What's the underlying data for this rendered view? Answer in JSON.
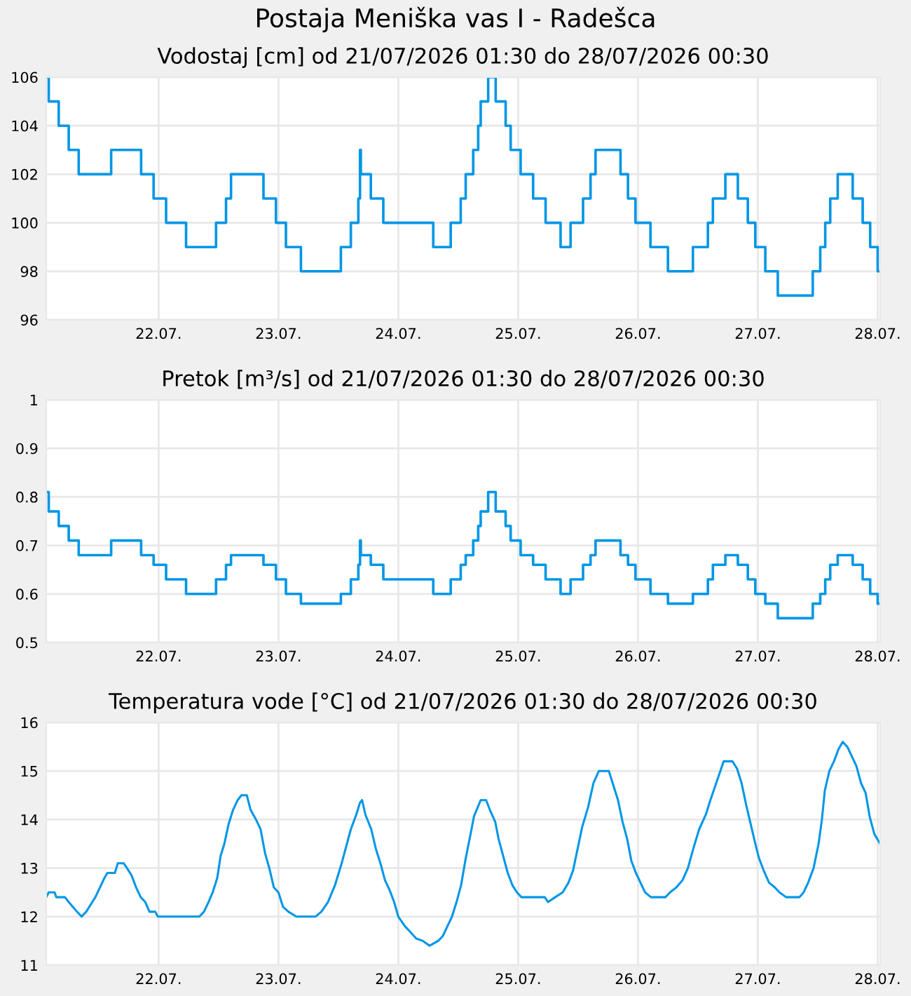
{
  "chart_data": [
    {
      "type": "step",
      "title": "Postaja Meniška vas I - Radešca",
      "subtitle": "Vodostaj [cm] od 21/07/2026 01:30 do 28/07/2026 00:30",
      "x": [
        "2026-07-21T01:30",
        "2026-07-21T02:00",
        "2026-07-21T04:00",
        "2026-07-21T06:00",
        "2026-07-21T08:00",
        "2026-07-21T14:30",
        "2026-07-21T20:30",
        "2026-07-21T23:00",
        "2026-07-22T01:30",
        "2026-07-22T05:30",
        "2026-07-22T11:30",
        "2026-07-22T13:30",
        "2026-07-22T14:30",
        "2026-07-22T21:00",
        "2026-07-22T23:30",
        "2026-07-23T01:30",
        "2026-07-23T04:30",
        "2026-07-23T12:30",
        "2026-07-23T14:30",
        "2026-07-23T16:00",
        "2026-07-23T16:20",
        "2026-07-23T16:30",
        "2026-07-23T18:30",
        "2026-07-23T21:00",
        "2026-07-24T07:00",
        "2026-07-24T10:30",
        "2026-07-24T12:30",
        "2026-07-24T13:30",
        "2026-07-24T15:00",
        "2026-07-24T16:00",
        "2026-07-24T16:30",
        "2026-07-24T18:00",
        "2026-07-24T19:30",
        "2026-07-24T21:30",
        "2026-07-24T22:30",
        "2026-07-25T00:30",
        "2026-07-25T03:00",
        "2026-07-25T05:30",
        "2026-07-25T08:30",
        "2026-07-25T10:30",
        "2026-07-25T13:00",
        "2026-07-25T14:30",
        "2026-07-25T15:30",
        "2026-07-25T20:30",
        "2026-07-25T22:00",
        "2026-07-25T23:30",
        "2026-07-26T02:30",
        "2026-07-26T06:00",
        "2026-07-26T11:00",
        "2026-07-26T14:00",
        "2026-07-26T15:00",
        "2026-07-26T17:30",
        "2026-07-26T20:00",
        "2026-07-26T22:00",
        "2026-07-26T23:30",
        "2026-07-27T01:30",
        "2026-07-27T04:00",
        "2026-07-27T11:00",
        "2026-07-27T12:30",
        "2026-07-27T13:30",
        "2026-07-27T14:30",
        "2026-07-27T16:00",
        "2026-07-27T19:00",
        "2026-07-27T21:00",
        "2026-07-27T22:30",
        "2026-07-28T00:00",
        "2026-07-28T00:30"
      ],
      "series": [
        {
          "color": "#0096e6",
          "values": [
            106,
            105,
            104,
            103,
            102,
            103,
            102,
            101,
            100,
            99,
            100,
            101,
            102,
            101,
            100,
            99,
            98,
            99,
            100,
            101,
            103,
            102,
            101,
            100,
            99,
            100,
            101,
            102,
            103,
            104,
            105,
            106,
            105,
            104,
            103,
            102,
            101,
            100,
            99,
            100,
            101,
            102,
            103,
            102,
            101,
            100,
            99,
            98,
            99,
            100,
            101,
            102,
            101,
            100,
            99,
            98,
            97,
            98,
            99,
            100,
            101,
            102,
            101,
            100,
            99,
            98,
            98
          ]
        }
      ],
      "xlim": [
        "2026-07-21T01:30",
        "2026-07-28T00:30"
      ],
      "xticks": [
        {
          "value": "2026-07-22",
          "label": "22.07."
        },
        {
          "value": "2026-07-23",
          "label": "23.07."
        },
        {
          "value": "2026-07-24",
          "label": "24.07."
        },
        {
          "value": "2026-07-25",
          "label": "25.07."
        },
        {
          "value": "2026-07-26",
          "label": "26.07."
        },
        {
          "value": "2026-07-27",
          "label": "27.07."
        },
        {
          "value": "2026-07-28",
          "label": "28.07."
        }
      ],
      "ylim": [
        96,
        106
      ],
      "yticks": [
        96,
        98,
        100,
        102,
        104,
        106
      ],
      "grid": true
    },
    {
      "type": "step",
      "title": "Pretok [m³/s] od 21/07/2026 01:30 do 28/07/2026 00:30",
      "x": [
        "2026-07-21T01:30",
        "2026-07-21T02:00",
        "2026-07-21T04:00",
        "2026-07-21T06:00",
        "2026-07-21T08:00",
        "2026-07-21T14:30",
        "2026-07-21T20:30",
        "2026-07-21T23:00",
        "2026-07-22T01:30",
        "2026-07-22T05:30",
        "2026-07-22T11:30",
        "2026-07-22T13:30",
        "2026-07-22T14:30",
        "2026-07-22T21:00",
        "2026-07-22T23:30",
        "2026-07-23T01:30",
        "2026-07-23T04:30",
        "2026-07-23T12:30",
        "2026-07-23T14:30",
        "2026-07-23T16:00",
        "2026-07-23T16:20",
        "2026-07-23T16:30",
        "2026-07-23T18:30",
        "2026-07-23T21:00",
        "2026-07-24T07:00",
        "2026-07-24T10:30",
        "2026-07-24T12:30",
        "2026-07-24T13:30",
        "2026-07-24T15:00",
        "2026-07-24T16:00",
        "2026-07-24T16:30",
        "2026-07-24T18:00",
        "2026-07-24T19:30",
        "2026-07-24T21:30",
        "2026-07-24T22:30",
        "2026-07-25T00:30",
        "2026-07-25T03:00",
        "2026-07-25T05:30",
        "2026-07-25T08:30",
        "2026-07-25T10:30",
        "2026-07-25T13:00",
        "2026-07-25T14:30",
        "2026-07-25T15:30",
        "2026-07-25T20:30",
        "2026-07-25T22:00",
        "2026-07-25T23:30",
        "2026-07-26T02:30",
        "2026-07-26T06:00",
        "2026-07-26T11:00",
        "2026-07-26T14:00",
        "2026-07-26T15:00",
        "2026-07-26T17:30",
        "2026-07-26T20:00",
        "2026-07-26T22:00",
        "2026-07-26T23:30",
        "2026-07-27T01:30",
        "2026-07-27T04:00",
        "2026-07-27T11:00",
        "2026-07-27T12:30",
        "2026-07-27T13:30",
        "2026-07-27T14:30",
        "2026-07-27T16:00",
        "2026-07-27T19:00",
        "2026-07-27T21:00",
        "2026-07-27T22:30",
        "2026-07-28T00:00",
        "2026-07-28T00:30"
      ],
      "series": [
        {
          "color": "#0096e6",
          "values": [
            0.81,
            0.77,
            0.74,
            0.71,
            0.68,
            0.71,
            0.68,
            0.66,
            0.63,
            0.6,
            0.63,
            0.66,
            0.68,
            0.66,
            0.63,
            0.6,
            0.58,
            0.6,
            0.63,
            0.66,
            0.71,
            0.68,
            0.66,
            0.63,
            0.6,
            0.63,
            0.66,
            0.68,
            0.71,
            0.74,
            0.77,
            0.81,
            0.77,
            0.74,
            0.71,
            0.68,
            0.66,
            0.63,
            0.6,
            0.63,
            0.66,
            0.68,
            0.71,
            0.68,
            0.66,
            0.63,
            0.6,
            0.58,
            0.6,
            0.63,
            0.66,
            0.68,
            0.66,
            0.63,
            0.6,
            0.58,
            0.55,
            0.58,
            0.6,
            0.63,
            0.66,
            0.68,
            0.66,
            0.63,
            0.6,
            0.58,
            0.58
          ]
        }
      ],
      "xlim": [
        "2026-07-21T01:30",
        "2026-07-28T00:30"
      ],
      "xticks": [
        {
          "value": "2026-07-22",
          "label": "22.07."
        },
        {
          "value": "2026-07-23",
          "label": "23.07."
        },
        {
          "value": "2026-07-24",
          "label": "24.07."
        },
        {
          "value": "2026-07-25",
          "label": "25.07."
        },
        {
          "value": "2026-07-26",
          "label": "26.07."
        },
        {
          "value": "2026-07-27",
          "label": "27.07."
        },
        {
          "value": "2026-07-28",
          "label": "28.07."
        }
      ],
      "ylim": [
        0.5,
        1
      ],
      "yticks": [
        0.5,
        0.6,
        0.7,
        0.8,
        0.9,
        1
      ],
      "grid": true
    },
    {
      "type": "line",
      "title": "Temperatura vode [°C] od 21/07/2026 01:30 do 28/07/2026 00:30",
      "x": [
        "2026-07-21T01:30",
        "2026-07-21T02:00",
        "2026-07-21T03:10",
        "2026-07-21T03:30",
        "2026-07-21T05:15",
        "2026-07-21T06:00",
        "2026-07-21T06:50",
        "2026-07-21T07:40",
        "2026-07-21T08:35",
        "2026-07-21T09:30",
        "2026-07-21T10:25",
        "2026-07-21T11:20",
        "2026-07-21T12:15",
        "2026-07-21T13:10",
        "2026-07-21T13:45",
        "2026-07-21T15:15",
        "2026-07-21T15:50",
        "2026-07-21T17:00",
        "2026-07-21T17:40",
        "2026-07-21T18:35",
        "2026-07-21T19:30",
        "2026-07-21T20:25",
        "2026-07-21T21:20",
        "2026-07-21T22:10",
        "2026-07-21T23:20",
        "2026-07-21T23:50",
        "2026-07-22T08:10",
        "2026-07-22T09:05",
        "2026-07-22T10:00",
        "2026-07-22T10:50",
        "2026-07-22T11:45",
        "2026-07-22T12:25",
        "2026-07-22T13:10",
        "2026-07-22T14:00",
        "2026-07-22T14:55",
        "2026-07-22T15:50",
        "2026-07-22T16:35",
        "2026-07-22T17:40",
        "2026-07-22T18:25",
        "2026-07-22T19:30",
        "2026-07-22T20:25",
        "2026-07-22T21:20",
        "2026-07-22T22:10",
        "2026-07-22T23:05",
        "2026-07-23T00:00",
        "2026-07-23T00:55",
        "2026-07-23T02:00",
        "2026-07-23T03:35",
        "2026-07-23T07:25",
        "2026-07-23T08:35",
        "2026-07-23T09:55",
        "2026-07-23T11:20",
        "2026-07-23T12:40",
        "2026-07-23T13:35",
        "2026-07-23T14:30",
        "2026-07-23T15:35",
        "2026-07-23T16:20",
        "2026-07-23T16:45",
        "2026-07-23T17:25",
        "2026-07-23T18:35",
        "2026-07-23T19:30",
        "2026-07-23T20:25",
        "2026-07-23T21:20",
        "2026-07-23T22:15",
        "2026-07-23T23:10",
        "2026-07-24T00:00",
        "2026-07-24T01:20",
        "2026-07-24T02:15",
        "2026-07-24T03:35",
        "2026-07-24T04:55",
        "2026-07-24T06:15",
        "2026-07-24T08:00",
        "2026-07-24T08:55",
        "2026-07-24T09:50",
        "2026-07-24T10:45",
        "2026-07-24T11:40",
        "2026-07-24T12:35",
        "2026-07-24T13:30",
        "2026-07-24T14:40",
        "2026-07-24T15:10",
        "2026-07-24T16:30",
        "2026-07-24T17:35",
        "2026-07-24T18:20",
        "2026-07-24T19:25",
        "2026-07-24T20:05",
        "2026-07-24T21:00",
        "2026-07-24T21:55",
        "2026-07-24T22:50",
        "2026-07-24T23:45",
        "2026-07-25T00:40",
        "2026-07-25T05:20",
        "2026-07-25T06:00",
        "2026-07-25T07:25",
        "2026-07-25T08:55",
        "2026-07-25T10:05",
        "2026-07-25T11:00",
        "2026-07-25T11:55",
        "2026-07-25T12:50",
        "2026-07-25T14:00",
        "2026-07-25T15:05",
        "2026-07-25T16:10",
        "2026-07-25T18:10",
        "2026-07-25T19:05",
        "2026-07-25T20:00",
        "2026-07-25T20:55",
        "2026-07-25T21:50",
        "2026-07-25T22:40",
        "2026-07-25T23:35",
        "2026-07-26T00:30",
        "2026-07-26T01:25",
        "2026-07-26T02:35",
        "2026-07-26T05:30",
        "2026-07-26T06:25",
        "2026-07-26T07:40",
        "2026-07-26T08:55",
        "2026-07-26T10:00",
        "2026-07-26T11:05",
        "2026-07-26T12:15",
        "2026-07-26T13:35",
        "2026-07-26T14:30",
        "2026-07-26T15:50",
        "2026-07-26T17:10",
        "2026-07-26T18:55",
        "2026-07-26T19:50",
        "2026-07-26T20:45",
        "2026-07-26T21:40",
        "2026-07-26T22:35",
        "2026-07-26T23:30",
        "2026-07-27T00:15",
        "2026-07-27T01:10",
        "2026-07-27T02:15",
        "2026-07-27T03:25",
        "2026-07-27T04:20",
        "2026-07-27T05:40",
        "2026-07-27T08:20",
        "2026-07-27T09:10",
        "2026-07-27T10:05",
        "2026-07-27T11:10",
        "2026-07-27T12:10",
        "2026-07-27T12:50",
        "2026-07-27T13:25",
        "2026-07-27T14:20",
        "2026-07-27T15:15",
        "2026-07-27T16:10",
        "2026-07-27T17:00",
        "2026-07-27T17:55",
        "2026-07-27T18:50",
        "2026-07-27T19:45",
        "2026-07-27T20:40",
        "2026-07-27T21:35",
        "2026-07-27T22:25",
        "2026-07-27T23:20",
        "2026-07-28T00:30"
      ],
      "series": [
        {
          "color": "#0096e6",
          "values": [
            12.4,
            12.5,
            12.5,
            12.4,
            12.4,
            12.3,
            12.2,
            12.1,
            12.0,
            12.1,
            12.25,
            12.4,
            12.6,
            12.8,
            12.9,
            12.9,
            13.1,
            13.1,
            13.0,
            12.85,
            12.6,
            12.4,
            12.3,
            12.1,
            12.1,
            12.0,
            12.0,
            12.1,
            12.3,
            12.5,
            12.8,
            13.25,
            13.5,
            13.9,
            14.2,
            14.4,
            14.5,
            14.5,
            14.2,
            14.0,
            13.8,
            13.3,
            13.0,
            12.6,
            12.5,
            12.2,
            12.1,
            12.0,
            12.0,
            12.1,
            12.3,
            12.65,
            13.1,
            13.45,
            13.8,
            14.1,
            14.35,
            14.4,
            14.1,
            13.8,
            13.4,
            13.1,
            12.75,
            12.55,
            12.3,
            12.0,
            11.8,
            11.7,
            11.55,
            11.5,
            11.4,
            11.5,
            11.6,
            11.8,
            12.0,
            12.3,
            12.65,
            13.2,
            13.8,
            14.07,
            14.4,
            14.4,
            14.2,
            13.95,
            13.6,
            13.25,
            12.9,
            12.65,
            12.5,
            12.4,
            12.4,
            12.3,
            12.4,
            12.5,
            12.7,
            12.95,
            13.4,
            13.85,
            14.25,
            14.75,
            15.0,
            15.0,
            14.7,
            14.4,
            13.95,
            13.6,
            13.15,
            12.9,
            12.7,
            12.5,
            12.4,
            12.4,
            12.5,
            12.6,
            12.75,
            13.0,
            13.4,
            13.8,
            14.1,
            14.4,
            14.8,
            15.2,
            15.2,
            15.05,
            14.75,
            14.3,
            13.9,
            13.5,
            13.2,
            12.95,
            12.7,
            12.6,
            12.5,
            12.4,
            12.4,
            12.5,
            12.7,
            13.0,
            13.5,
            14.0,
            14.6,
            15.0,
            15.2,
            15.45,
            15.6,
            15.5,
            15.3,
            15.1,
            14.75,
            14.55,
            14.05,
            13.7,
            13.5
          ]
        }
      ],
      "xlim": [
        "2026-07-21T01:30",
        "2026-07-28T00:30"
      ],
      "xticks": [
        {
          "value": "2026-07-22",
          "label": "22.07."
        },
        {
          "value": "2026-07-23",
          "label": "23.07."
        },
        {
          "value": "2026-07-24",
          "label": "24.07."
        },
        {
          "value": "2026-07-25",
          "label": "25.07."
        },
        {
          "value": "2026-07-26",
          "label": "26.07."
        },
        {
          "value": "2026-07-27",
          "label": "27.07."
        },
        {
          "value": "2026-07-28",
          "label": "28.07."
        }
      ],
      "ylim": [
        11,
        16
      ],
      "yticks": [
        11,
        12,
        13,
        14,
        15,
        16
      ],
      "grid": true
    }
  ]
}
